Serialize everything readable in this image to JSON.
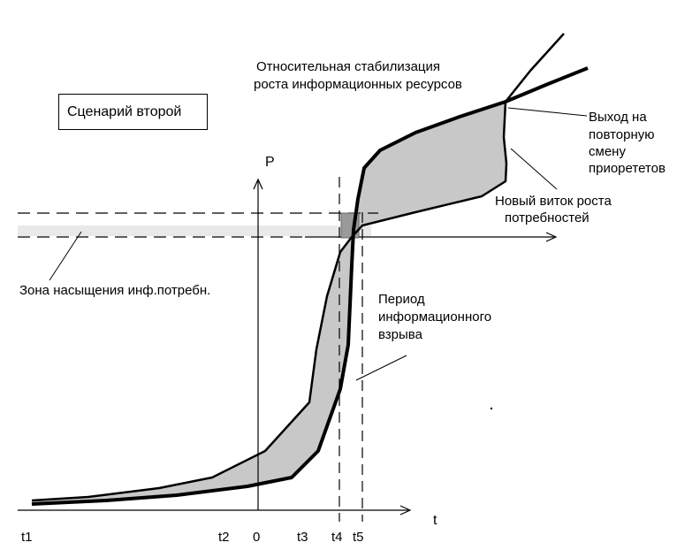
{
  "scenario_label": "Сценарий второй",
  "y_axis_label": "P",
  "x_axis_label": "t",
  "ticks": [
    "t1",
    "t2",
    "0",
    "t3",
    "t4",
    "t5"
  ],
  "annotations": {
    "stabilization_line1": "Относительная стабилизация",
    "stabilization_line2": "роста информационных ресурсов",
    "exit_line1": "Выход на",
    "exit_line2": "повторную",
    "exit_line3": "смену",
    "exit_line4": "приорететов",
    "new_round_line1": "Новый виток роста",
    "new_round_line2": "потребностей",
    "saturation_zone": "Зона насыщения  инф.потребн.",
    "explosion_line1": "Период",
    "explosion_line2": "информационного",
    "explosion_line3": "взрыва"
  },
  "colors": {
    "band_fill": "#c8c8c8",
    "line": "#000000"
  }
}
